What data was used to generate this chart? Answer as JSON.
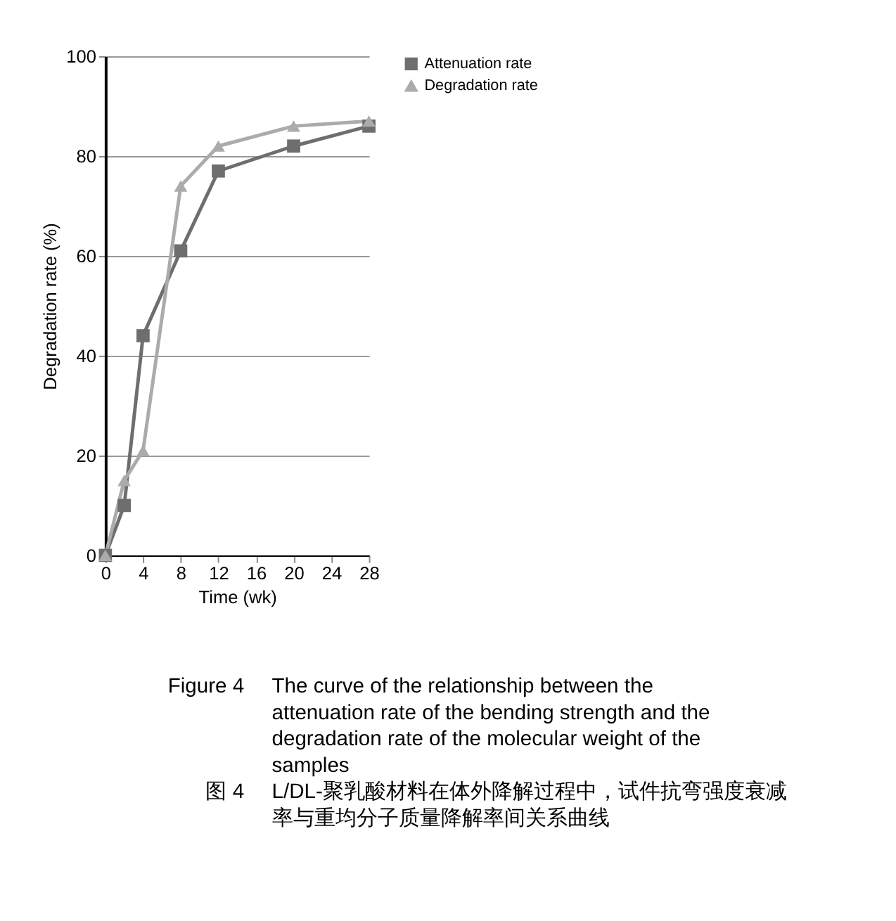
{
  "chart_data": {
    "type": "line",
    "xlabel": "Time (wk)",
    "ylabel": "Degradation rate (%)",
    "x": [
      0,
      2,
      4,
      8,
      12,
      20,
      28
    ],
    "series": [
      {
        "name": "Attenuation rate",
        "color": "#6e6e6e",
        "marker": "square",
        "values": [
          0,
          10,
          44,
          61,
          77,
          82,
          86
        ]
      },
      {
        "name": "Degradation rate",
        "color": "#ababab",
        "marker": "triangle",
        "values": [
          0,
          15,
          21,
          74,
          82,
          86,
          87
        ]
      }
    ],
    "xlim": [
      0,
      28
    ],
    "xticks": [
      0,
      4,
      8,
      12,
      16,
      20,
      24,
      28
    ],
    "ylim": [
      0,
      100
    ],
    "yticks": [
      0,
      20,
      40,
      60,
      80,
      100
    ],
    "grid": "y",
    "legend": "top right",
    "line_style": "solid",
    "annotations": [
      "Figure 4",
      "The curve of the relationship between the attenuation rate of the bending strength and the degradation rate of the molecular weight of the samples",
      "图 4",
      "L/DL-聚乳酸材料在体外降解过程中，试件抗弯强度衰减率与重均分子质量降解率间关系曲线"
    ]
  }
}
